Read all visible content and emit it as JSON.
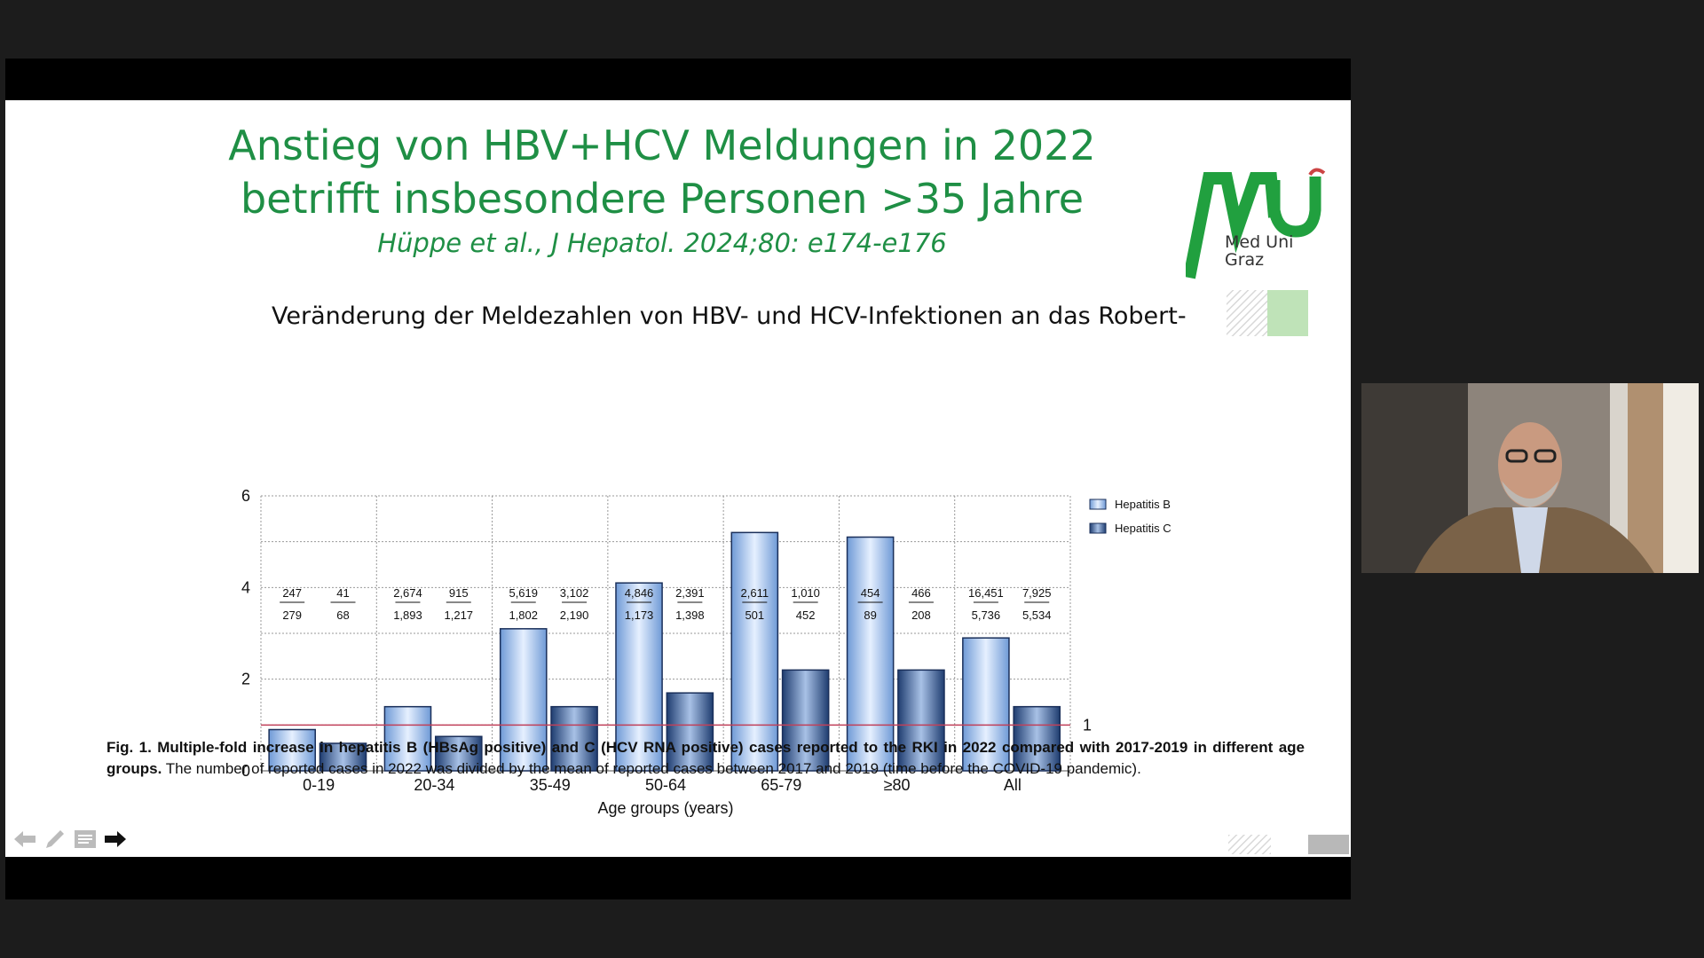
{
  "slide": {
    "title_line1": "Anstieg von HBV+HCV Meldungen in 2022",
    "title_line2": "betrifft insbesondere Personen >35 Jahre",
    "citation": "Hüppe et al., J Hepatol. 2024;80: e174-e176",
    "subtitle": "Veränderung der Meldezahlen von HBV- und HCV-Infektionen an das Robert-",
    "logo_line1": "Med Uni",
    "logo_line2": "Graz",
    "caption_bold": "Fig. 1. Multiple-fold increase in hepatitis B (HBsAg positive) and C (HCV RNA positive) cases reported to the RKI in 2022 compared with 2017-2019 in different age groups.",
    "caption_text": " The number of reported cases in 2022 was divided by the mean of reported cases between 2017 and 2019 (time before the COVID-19 pandemic)."
  },
  "colors": {
    "accent_green": "#1f8f45",
    "hep_b": "#a9c8ee",
    "hep_c": "#3a5f98",
    "reference_line": "#c0405a"
  },
  "icons": [
    "back-arrow-icon",
    "pen-icon",
    "menu-icon",
    "forward-arrow-icon"
  ],
  "chart_data": {
    "type": "bar",
    "categories": [
      "0-19",
      "20-34",
      "35-49",
      "50-64",
      "65-79",
      "≥80",
      "All"
    ],
    "series": [
      {
        "name": "Hepatitis B",
        "values": [
          0.9,
          1.4,
          3.1,
          4.1,
          5.2,
          5.1,
          2.9
        ]
      },
      {
        "name": "Hepatitis C",
        "values": [
          0.6,
          0.75,
          1.4,
          1.7,
          2.2,
          2.2,
          1.4
        ]
      }
    ],
    "counts_2022": {
      "Hepatitis B": [
        "247",
        "2,674",
        "5,619",
        "4,846",
        "2,611",
        "454",
        "16,451"
      ],
      "Hepatitis C": [
        "41",
        "915",
        "3,102",
        "2,391",
        "1,010",
        "466",
        "7,925"
      ]
    },
    "counts_2017_2019": {
      "Hepatitis B": [
        "279",
        "1,893",
        "1,802",
        "1,173",
        "501",
        "89",
        "5,736"
      ],
      "Hepatitis C": [
        "68",
        "1,217",
        "2,190",
        "1,398",
        "452",
        "208",
        "5,534"
      ]
    },
    "xlabel": "Age groups (years)",
    "ylabel": "",
    "ylim": [
      0,
      6
    ],
    "yticks": [
      "0",
      "2",
      "4",
      "6"
    ],
    "reference_value": 1,
    "reference_label": "1",
    "grid": true,
    "legend": "right"
  }
}
